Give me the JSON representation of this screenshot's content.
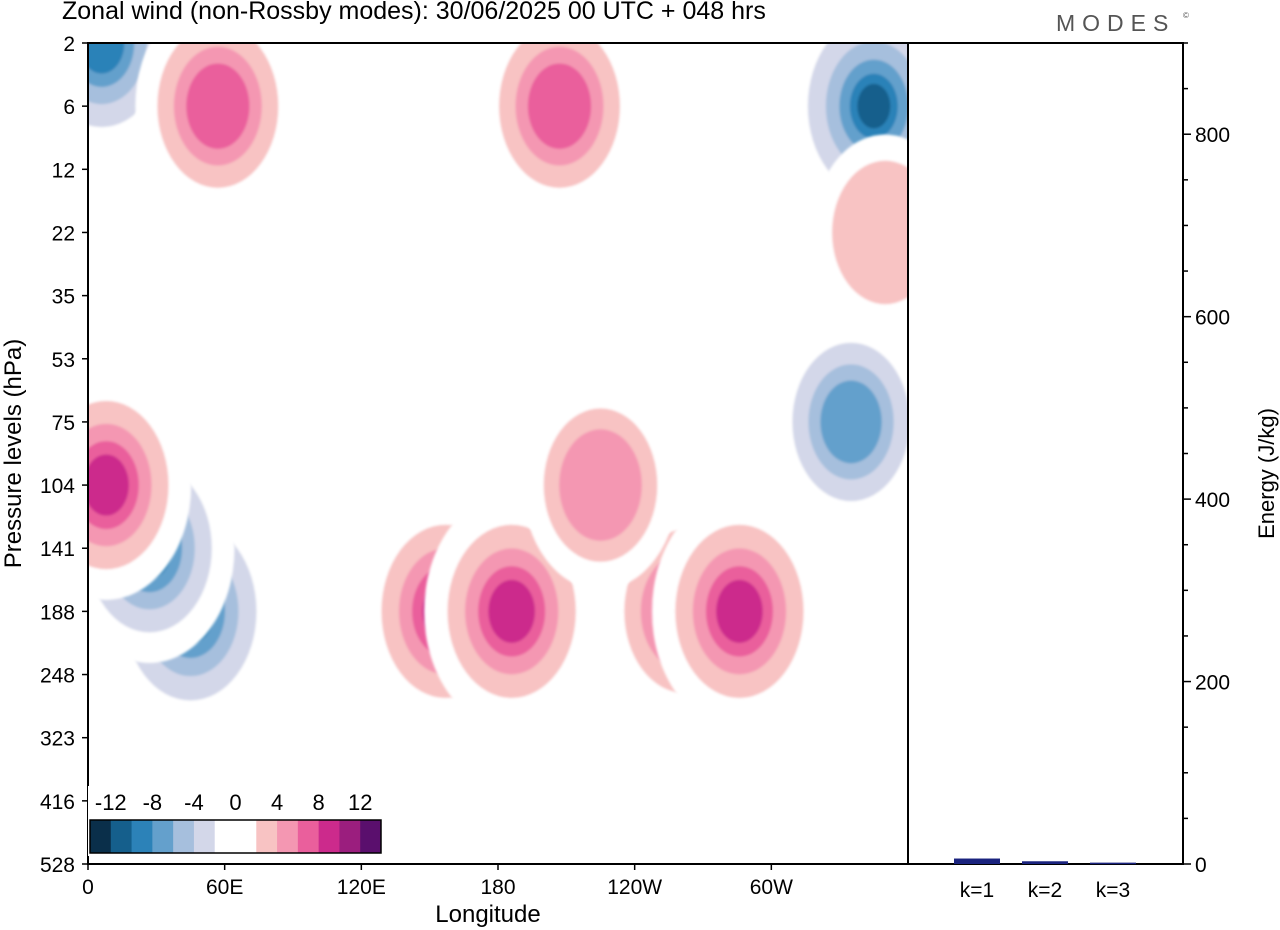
{
  "header": {
    "title": "Zonal wind (non-Rossby modes):  30/06/2025  00 UTC  + 048 hrs",
    "logo_text": "MODES",
    "logo_mark": "©"
  },
  "chart_data": [
    {
      "type": "heatmap",
      "title": "Zonal wind (non-Rossby modes):  30/06/2025  00 UTC  + 048 hrs",
      "xlabel": "Longitude",
      "ylabel": "Pressure levels (hPa)",
      "x_ticks": [
        "0",
        "60E",
        "120E",
        "180",
        "120W",
        "60W"
      ],
      "x_tick_values": [
        0,
        60,
        120,
        180,
        240,
        300
      ],
      "xlim": [
        0,
        360
      ],
      "y_ticks": [
        "2",
        "6",
        "12",
        "22",
        "35",
        "53",
        "75",
        "104",
        "141",
        "188",
        "248",
        "323",
        "416",
        "528"
      ],
      "y_axis": "categorical pressure levels, 2 hPa at top to 528 hPa at bottom",
      "colorbar": {
        "labels": [
          "-12",
          "-8",
          "-4",
          "0",
          "4",
          "8",
          "12"
        ],
        "colors": [
          "#0a2f4a",
          "#155f8c",
          "#2c82b8",
          "#64a0cc",
          "#a6bfdd",
          "#d3d7e9",
          "#ffffff",
          "#ffffff",
          "#f8c3c3",
          "#f497b2",
          "#ea5f9c",
          "#cc2a8c",
          "#9b1e7e",
          "#5a0f6d"
        ],
        "placement": "bottom-left inside plot"
      },
      "features": [
        {
          "sign": "negative",
          "lon": 45,
          "lev": "188",
          "peak": -12
        },
        {
          "sign": "negative",
          "lon": 27,
          "lev": "141",
          "peak": -10
        },
        {
          "sign": "negative",
          "lon": 6,
          "lev": "2",
          "peak": -10
        },
        {
          "sign": "negative",
          "lon": 345,
          "lev": "6",
          "peak": -12
        },
        {
          "sign": "negative",
          "lon": 335,
          "lev": "75",
          "peak": -8
        },
        {
          "sign": "positive",
          "lon": 8,
          "lev": "104",
          "peak": 10
        },
        {
          "sign": "positive",
          "lon": 57,
          "lev": "6",
          "peak": 9
        },
        {
          "sign": "positive",
          "lon": 157,
          "lev": "188",
          "peak": 11
        },
        {
          "sign": "positive",
          "lon": 186,
          "lev": "188",
          "peak": 11
        },
        {
          "sign": "positive",
          "lon": 262,
          "lev": "188",
          "peak": 9
        },
        {
          "sign": "positive",
          "lon": 286,
          "lev": "188",
          "peak": 11
        },
        {
          "sign": "positive",
          "lon": 207,
          "lev": "6",
          "peak": 9
        },
        {
          "sign": "positive",
          "lon": 225,
          "lev": "104",
          "peak": 7
        },
        {
          "sign": "positive",
          "lon": 350,
          "lev": "22",
          "peak": 5
        }
      ]
    },
    {
      "type": "bar",
      "ylabel": "Energy (J/kg)",
      "categories": [
        "k=1",
        "k=2",
        "k=3"
      ],
      "values": [
        6,
        3,
        1.5
      ],
      "ylim": [
        0,
        900
      ],
      "y_ticks": [
        0,
        200,
        400,
        600,
        800
      ],
      "bar_colors": [
        "#1a237e",
        "#1a237e",
        "#1a237e"
      ]
    }
  ]
}
